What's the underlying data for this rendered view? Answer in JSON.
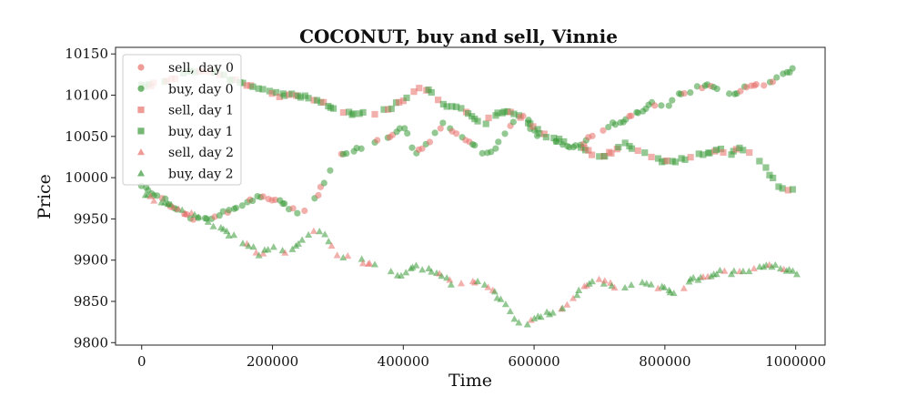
{
  "chart_data": {
    "type": "scatter",
    "title": "COCONUT, buy and sell, Vinnie",
    "xlabel": "Time",
    "ylabel": "Price",
    "xlim": [
      -40000,
      1045000
    ],
    "ylim": [
      9797,
      10158
    ],
    "x_ticks": [
      0,
      200000,
      400000,
      600000,
      800000,
      1000000
    ],
    "x_tick_labels": [
      "0",
      "200000",
      "400000",
      "600000",
      "800000",
      "1000000"
    ],
    "y_ticks": [
      9800,
      9850,
      9900,
      9950,
      10000,
      10050,
      10100,
      10150
    ],
    "y_tick_labels": [
      "9800",
      "9850",
      "9900",
      "9950",
      "10000",
      "10050",
      "10100",
      "10150"
    ],
    "grid": false,
    "legend_position": "upper-left",
    "colors": {
      "sell": "#e8706a",
      "buy": "#3a9a3a"
    },
    "series": [
      {
        "name": "sell, day 0",
        "marker": "circle",
        "color": "#e8706a",
        "group": 0
      },
      {
        "name": "buy, day 0",
        "marker": "circle",
        "color": "#3a9a3a",
        "group": 0
      },
      {
        "name": "sell, day 1",
        "marker": "square",
        "color": "#e8706a",
        "group": 1
      },
      {
        "name": "buy, day 1",
        "marker": "square",
        "color": "#3a9a3a",
        "group": 1
      },
      {
        "name": "sell, day 2",
        "marker": "triangle",
        "color": "#e8706a",
        "group": 2
      },
      {
        "name": "buy, day 2",
        "marker": "triangle",
        "color": "#3a9a3a",
        "group": 2
      }
    ],
    "price_paths": [
      {
        "day": 0,
        "x": [
          0,
          30000,
          60000,
          90000,
          120000,
          150000,
          180000,
          210000,
          240000,
          260000,
          280000,
          300000,
          320000,
          340000,
          360000,
          380000,
          400000,
          420000,
          440000,
          460000,
          480000,
          500000,
          520000,
          540000,
          560000,
          580000,
          600000,
          620000,
          640000,
          660000,
          680000,
          700000,
          720000,
          740000,
          760000,
          780000,
          800000,
          820000,
          840000,
          860000,
          880000,
          900000,
          920000,
          940000,
          960000,
          980000,
          1000000
        ],
        "y": [
          9990,
          9975,
          9958,
          9948,
          9955,
          9965,
          9978,
          9972,
          9955,
          9965,
          9995,
          10025,
          10030,
          10040,
          10045,
          10050,
          10060,
          10030,
          10045,
          10065,
          10055,
          10045,
          10030,
          10035,
          10060,
          10080,
          10055,
          10040,
          10045,
          10035,
          10045,
          10055,
          10065,
          10070,
          10080,
          10090,
          10085,
          10100,
          10105,
          10112,
          10110,
          10100,
          10108,
          10112,
          10115,
          10125,
          10135
        ]
      },
      {
        "day": 1,
        "x": [
          0,
          30000,
          60000,
          90000,
          120000,
          150000,
          180000,
          210000,
          240000,
          270000,
          300000,
          330000,
          360000,
          380000,
          400000,
          420000,
          440000,
          460000,
          480000,
          500000,
          520000,
          540000,
          560000,
          580000,
          600000,
          620000,
          640000,
          660000,
          680000,
          700000,
          720000,
          740000,
          760000,
          780000,
          800000,
          820000,
          840000,
          860000,
          880000,
          900000,
          920000,
          940000,
          960000,
          980000,
          1000000
        ],
        "y": [
          10110,
          10115,
          10125,
          10130,
          10125,
          10115,
          10110,
          10100,
          10100,
          10095,
          10080,
          10075,
          10080,
          10085,
          10095,
          10110,
          10105,
          10090,
          10085,
          10080,
          10065,
          10075,
          10080,
          10075,
          10060,
          10050,
          10045,
          10040,
          10035,
          10025,
          10030,
          10040,
          10035,
          10025,
          10020,
          10020,
          10025,
          10030,
          10035,
          10030,
          10035,
          10025,
          10005,
          9985,
          9985
        ]
      },
      {
        "day": 2,
        "x": [
          0,
          30000,
          60000,
          90000,
          120000,
          150000,
          180000,
          200000,
          220000,
          240000,
          260000,
          280000,
          300000,
          330000,
          360000,
          390000,
          420000,
          450000,
          480000,
          510000,
          540000,
          560000,
          580000,
          600000,
          620000,
          640000,
          660000,
          680000,
          700000,
          720000,
          740000,
          760000,
          780000,
          800000,
          820000,
          840000,
          860000,
          880000,
          900000,
          920000,
          940000,
          960000,
          980000,
          1000000
        ],
        "y": [
          9980,
          9970,
          9960,
          9950,
          9938,
          9925,
          9908,
          9915,
          9910,
          9920,
          9935,
          9930,
          9905,
          9900,
          9895,
          9880,
          9892,
          9885,
          9870,
          9875,
          9860,
          9845,
          9815,
          9830,
          9835,
          9840,
          9855,
          9870,
          9875,
          9870,
          9865,
          9875,
          9870,
          9865,
          9860,
          9875,
          9880,
          9885,
          9885,
          9885,
          9890,
          9895,
          9890,
          9885
        ]
      }
    ]
  }
}
